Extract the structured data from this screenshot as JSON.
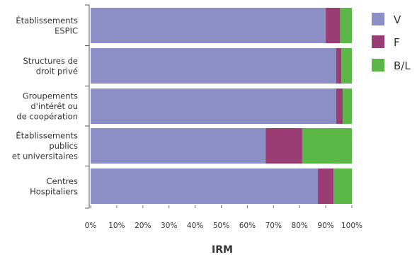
{
  "chart_data": {
    "type": "bar",
    "orientation": "horizontal",
    "stacked": true,
    "categories": [
      [
        "Établissements",
        "ESPIC"
      ],
      [
        "Structures de",
        "droit privé"
      ],
      [
        "Groupements",
        "d'intérêt ou",
        "de coopération"
      ],
      [
        "Établissements",
        "publics",
        "et universitaires"
      ],
      [
        "Centres",
        "Hospitaliers"
      ]
    ],
    "series": [
      {
        "name": "V",
        "color": "#8b8fc6",
        "values": [
          90,
          94,
          94,
          67,
          87
        ]
      },
      {
        "name": "F",
        "color": "#9b3d75",
        "values": [
          5.5,
          2,
          2.5,
          14,
          6
        ]
      },
      {
        "name": "B/L",
        "color": "#5bb848",
        "values": [
          4.5,
          4,
          3.5,
          19,
          7
        ]
      }
    ],
    "xlim": [
      0,
      100
    ],
    "xticks": [
      "0%",
      "10%",
      "20%",
      "30%",
      "40%",
      "50%",
      "60%",
      "70%",
      "80%",
      "90%",
      "100%"
    ],
    "xlabel": "IRM",
    "legend_position": "right"
  }
}
